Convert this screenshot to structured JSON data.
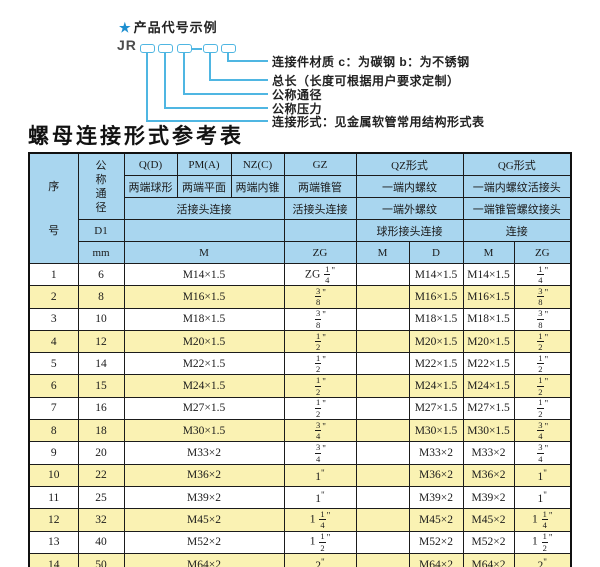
{
  "diagram": {
    "star": "★",
    "title": "产品代号示例",
    "code_prefix": "JR",
    "labels": [
      "连接件材质  c：为碳钢  b：为不锈钢",
      "总长（长度可根据用户要求定制）",
      "公称通径",
      "公称压力",
      "连接形式：见金属软管常用结构形式表"
    ]
  },
  "table": {
    "title": "螺母连接形式参考表",
    "header": {
      "seq": "序号",
      "nominal": "公称通径",
      "d1": "D1",
      "mm": "mm",
      "q": "Q(D)",
      "q_sub": "两端球形",
      "pm": "PM(A)",
      "pm_sub": "两端平面",
      "nz": "NZ(C)",
      "nz_sub": "两端内锥",
      "gz": "GZ",
      "gz_sub": "两端锥管",
      "gz_union": "活接头连接",
      "union3": "活接头连接",
      "qz": "QZ形式",
      "qz_sub1": "一端内螺纹",
      "qz_sub2": "一端外螺纹",
      "qz_sub3": "球形接头连接",
      "qg": "QG形式",
      "qg_sub1": "一端内螺纹活接头",
      "qg_sub2": "一端锥管螺纹接头",
      "qg_sub3": "连接",
      "m3": "M",
      "zg": "ZG",
      "qz_m": "M",
      "qz_d": "D",
      "qg_m": "M",
      "qg_zg": "ZG"
    },
    "rows": [
      {
        "no": "1",
        "mm": "6",
        "m": "M14×1.5",
        "gz": "ZG 1/4\"",
        "qz_m": "",
        "qz_d": "M14×1.5",
        "qg_m": "M14×1.5",
        "qg_zg": "1/4\""
      },
      {
        "no": "2",
        "mm": "8",
        "m": "M16×1.5",
        "gz": "3/8\"",
        "qz_m": "",
        "qz_d": "M16×1.5",
        "qg_m": "M16×1.5",
        "qg_zg": "3/8\""
      },
      {
        "no": "3",
        "mm": "10",
        "m": "M18×1.5",
        "gz": "3/8\"",
        "qz_m": "",
        "qz_d": "M18×1.5",
        "qg_m": "M18×1.5",
        "qg_zg": "3/8\""
      },
      {
        "no": "4",
        "mm": "12",
        "m": "M20×1.5",
        "gz": "1/2\"",
        "qz_m": "",
        "qz_d": "M20×1.5",
        "qg_m": "M20×1.5",
        "qg_zg": "1/2\""
      },
      {
        "no": "5",
        "mm": "14",
        "m": "M22×1.5",
        "gz": "1/2\"",
        "qz_m": "",
        "qz_d": "M22×1.5",
        "qg_m": "M22×1.5",
        "qg_zg": "1/2\""
      },
      {
        "no": "6",
        "mm": "15",
        "m": "M24×1.5",
        "gz": "1/2\"",
        "qz_m": "",
        "qz_d": "M24×1.5",
        "qg_m": "M24×1.5",
        "qg_zg": "1/2\""
      },
      {
        "no": "7",
        "mm": "16",
        "m": "M27×1.5",
        "gz": "1/2\"",
        "qz_m": "",
        "qz_d": "M27×1.5",
        "qg_m": "M27×1.5",
        "qg_zg": "1/2\""
      },
      {
        "no": "8",
        "mm": "18",
        "m": "M30×1.5",
        "gz": "3/4\"",
        "qz_m": "",
        "qz_d": "M30×1.5",
        "qg_m": "M30×1.5",
        "qg_zg": "3/4\""
      },
      {
        "no": "9",
        "mm": "20",
        "m": "M33×2",
        "gz": "3/4\"",
        "qz_m": "",
        "qz_d": "M33×2",
        "qg_m": "M33×2",
        "qg_zg": "3/4\""
      },
      {
        "no": "10",
        "mm": "22",
        "m": "M36×2",
        "gz": "1\"",
        "qz_m": "",
        "qz_d": "M36×2",
        "qg_m": "M36×2",
        "qg_zg": "1\""
      },
      {
        "no": "11",
        "mm": "25",
        "m": "M39×2",
        "gz": "1\"",
        "qz_m": "",
        "qz_d": "M39×2",
        "qg_m": "M39×2",
        "qg_zg": "1\""
      },
      {
        "no": "12",
        "mm": "32",
        "m": "M45×2",
        "gz": "1 1/4\"",
        "qz_m": "",
        "qz_d": "M45×2",
        "qg_m": "M45×2",
        "qg_zg": "1 1/4\""
      },
      {
        "no": "13",
        "mm": "40",
        "m": "M52×2",
        "gz": "1 1/2\"",
        "qz_m": "",
        "qz_d": "M52×2",
        "qg_m": "M52×2",
        "qg_zg": "1 1/2\""
      },
      {
        "no": "14",
        "mm": "50",
        "m": "M64×2",
        "gz": "2\"",
        "qz_m": "",
        "qz_d": "M64×2",
        "qg_m": "M64×2",
        "qg_zg": "2\""
      }
    ]
  },
  "colors": {
    "header_bg": "#a9d6ef",
    "row_yellow": "#faf2b3",
    "connector_cyan": "#4fb6e2",
    "star_blue": "#1e8fd0",
    "border": "#1b1b1b"
  }
}
